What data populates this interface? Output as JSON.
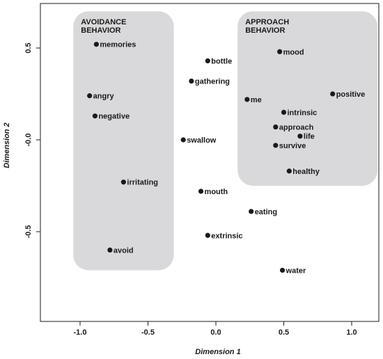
{
  "chart_data": {
    "type": "scatter",
    "xlabel": "Dimension 1",
    "ylabel": "Dimension 2",
    "xlim": [
      -1.3,
      1.2
    ],
    "ylim": [
      -1.0,
      0.72
    ],
    "xticks": [
      {
        "value": -1.0,
        "label": "-1.0"
      },
      {
        "value": -0.5,
        "label": "-0.5"
      },
      {
        "value": 0.0,
        "label": "0.0"
      },
      {
        "value": 0.5,
        "label": "0.5"
      },
      {
        "value": 1.0,
        "label": "1.0"
      }
    ],
    "yticks": [
      {
        "value": 0.5,
        "label": "0.5"
      },
      {
        "value": 0.0,
        "label": "-0.0"
      },
      {
        "value": -0.5,
        "label": "-0.5"
      }
    ],
    "grid": false,
    "regions": [
      {
        "label_lines": [
          "AVOIDANCE",
          "BEHAVIOR"
        ],
        "x_range": [
          -1.05,
          -0.31
        ],
        "y_range": [
          -0.71,
          0.7
        ],
        "color": "#d9d9db"
      },
      {
        "label_lines": [
          "APPROACH",
          "BEHAVIOR"
        ],
        "x_range": [
          0.16,
          1.19
        ],
        "y_range": [
          -0.25,
          0.7
        ],
        "color": "#d9d9db"
      }
    ],
    "points": [
      {
        "label": "memories",
        "x": -0.88,
        "y": 0.52
      },
      {
        "label": "angry",
        "x": -0.93,
        "y": 0.24
      },
      {
        "label": "negative",
        "x": -0.89,
        "y": 0.13
      },
      {
        "label": "irritating",
        "x": -0.68,
        "y": -0.23
      },
      {
        "label": "avoid",
        "x": -0.78,
        "y": -0.6
      },
      {
        "label": "bottle",
        "x": -0.06,
        "y": 0.43
      },
      {
        "label": "gathering",
        "x": -0.18,
        "y": 0.32
      },
      {
        "label": "swallow",
        "x": -0.24,
        "y": 0.0
      },
      {
        "label": "mouth",
        "x": -0.11,
        "y": -0.28
      },
      {
        "label": "extrinsic",
        "x": -0.06,
        "y": -0.52
      },
      {
        "label": "mood",
        "x": 0.47,
        "y": 0.48
      },
      {
        "label": "me",
        "x": 0.23,
        "y": 0.22
      },
      {
        "label": "positive",
        "x": 0.86,
        "y": 0.25
      },
      {
        "label": "intrinsic",
        "x": 0.5,
        "y": 0.15
      },
      {
        "label": "approach",
        "x": 0.44,
        "y": 0.07
      },
      {
        "label": "life",
        "x": 0.62,
        "y": 0.02
      },
      {
        "label": "survive",
        "x": 0.44,
        "y": -0.03
      },
      {
        "label": "healthy",
        "x": 0.54,
        "y": -0.17
      },
      {
        "label": "eating",
        "x": 0.26,
        "y": -0.39
      },
      {
        "label": "water",
        "x": 0.49,
        "y": -0.71
      }
    ],
    "point_color": "#1a1a1a",
    "region_color": "#d9d9db"
  }
}
